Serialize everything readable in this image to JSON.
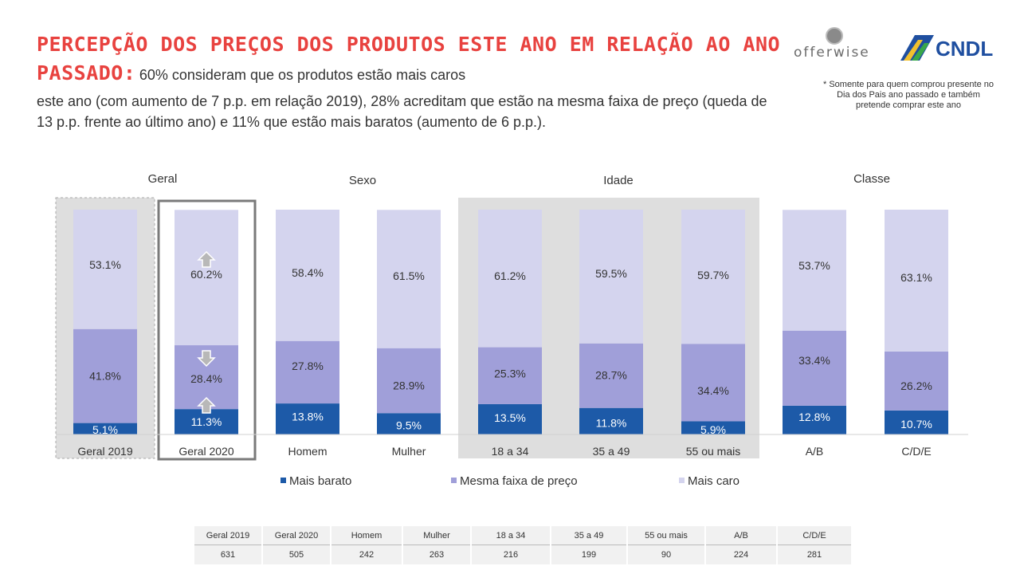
{
  "header": {
    "title_bold": "PERCEPÇÃO DOS PREÇOS DOS PRODUTOS ESTE ANO EM RELAÇÃO AO ANO PASSADO:",
    "subtitle_line1": "60% consideram que os produtos estão mais caros",
    "subtitle_rest": "este ano (com aumento de 7 p.p. em relação 2019), 28% acreditam que estão na mesma faixa de preço (queda de 13 p.p. frente ao último ano) e 11% que estão mais baratos (aumento de 6 p.p.)."
  },
  "logos": {
    "offerwise": "offerwise",
    "cndl": "CNDL"
  },
  "footnote": "* Somente para quem comprou presente no Dia dos Pais ano passado e também pretende comprar este ano",
  "colors": {
    "mais_barato": "#1d5aa8",
    "mesma_faixa": "#a09fd9",
    "mais_caro": "#d4d4ee",
    "panel": "#dedede",
    "title": "#e8423f"
  },
  "chart_data": {
    "type": "bar",
    "stacked": true,
    "groups": [
      "Geral",
      "Sexo",
      "Idade",
      "Classe"
    ],
    "categories": [
      "Geral 2019",
      "Geral 2020",
      "Homem",
      "Mulher",
      "18 a 34",
      "35 a 49",
      "55 ou mais",
      "A/B",
      "C/D/E"
    ],
    "series": [
      {
        "name": "Mais barato",
        "values": [
          5.1,
          11.3,
          13.8,
          9.5,
          13.5,
          11.8,
          5.9,
          12.8,
          10.7
        ],
        "labels": [
          "5.1%",
          "11.3%",
          "13.8%",
          "9.5%",
          "13.5%",
          "11.8%",
          "5.9%",
          "12.8%",
          "10.7%"
        ]
      },
      {
        "name": "Mesma faixa de preço",
        "values": [
          41.8,
          28.4,
          27.8,
          28.9,
          25.3,
          28.7,
          34.4,
          33.4,
          26.2
        ],
        "labels": [
          "41.8%",
          "28.4%",
          "27.8%",
          "28.9%",
          "25.3%",
          "28.7%",
          "34.4%",
          "33.4%",
          "26.2%"
        ]
      },
      {
        "name": "Mais caro",
        "values": [
          53.1,
          60.2,
          58.4,
          61.5,
          61.2,
          59.5,
          59.7,
          53.7,
          63.1
        ],
        "labels": [
          "53.1%",
          "60.2%",
          "58.4%",
          "61.5%",
          "61.2%",
          "59.5%",
          "59.7%",
          "53.7%",
          "63.1%"
        ]
      }
    ],
    "change_arrows_geral_2020": {
      "Mais caro": "up",
      "Mesma faixa de preço": "down",
      "Mais barato": "up"
    },
    "legend": [
      "Mais barato",
      "Mesma faixa de preço",
      "Mais caro"
    ],
    "legend_position": "bottom"
  },
  "sample_table": {
    "headers": [
      "Geral 2019",
      "Geral 2020",
      "Homem",
      "Mulher",
      "18 a 34",
      "35 a 49",
      "55 ou mais",
      "A/B",
      "C/D/E"
    ],
    "values": [
      "631",
      "505",
      "242",
      "263",
      "216",
      "199",
      "90",
      "224",
      "281"
    ]
  }
}
